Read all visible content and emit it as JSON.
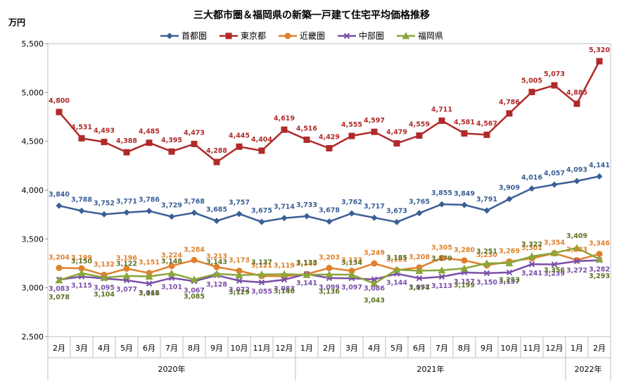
{
  "chart_data": {
    "type": "line",
    "title": "三大都市圏＆福岡県の新築一戸建て住宅平均価格推移",
    "ylabel": "万円",
    "ylim": [
      2500,
      5500
    ],
    "yticks": [
      "2,500",
      "3,000",
      "3,500",
      "4,000",
      "4,500",
      "5,000",
      "5,500"
    ],
    "grid": false,
    "legend_position": "top",
    "categories": [
      "2月",
      "3月",
      "4月",
      "5月",
      "6月",
      "7月",
      "8月",
      "9月",
      "10月",
      "11月",
      "12月",
      "1月",
      "2月",
      "3月",
      "4月",
      "5月",
      "6月",
      "7月",
      "8月",
      "9月",
      "10月",
      "11月",
      "12月",
      "1月",
      "2月"
    ],
    "years": [
      {
        "label": "2020年",
        "start": 0,
        "end": 10
      },
      {
        "label": "2021年",
        "start": 11,
        "end": 22
      },
      {
        "label": "2022年",
        "start": 23,
        "end": 24
      }
    ],
    "series": [
      {
        "name": "首都圏",
        "color": "#3a5f95",
        "marker": "diamond",
        "values": [
          3840,
          3788,
          3752,
          3771,
          3786,
          3729,
          3768,
          3685,
          3757,
          3675,
          3714,
          3733,
          3678,
          3762,
          3717,
          3673,
          3765,
          3855,
          3849,
          3791,
          3909,
          4016,
          4057,
          4093,
          4141
        ],
        "labels": [
          "3,840",
          "3,788",
          "3,752",
          "3,771",
          "3,786",
          "3,729",
          "3,768",
          "3,685",
          "3,757",
          "3,675",
          "3,714",
          "3,733",
          "3,678",
          "3,762",
          "3,717",
          "3,673",
          "3,765",
          "3,855",
          "3,849",
          "3,791",
          "3,909",
          "4,016",
          "4,057",
          "4,093",
          "4,141"
        ]
      },
      {
        "name": "東京都",
        "color": "#b02a2a",
        "marker": "square",
        "values": [
          4800,
          4531,
          4493,
          4388,
          4485,
          4395,
          4473,
          4288,
          4445,
          4404,
          4619,
          4516,
          4429,
          4555,
          4597,
          4479,
          4559,
          4711,
          4581,
          4567,
          4786,
          5005,
          5073,
          4885,
          5320
        ],
        "labels": [
          "4,800",
          "4,531",
          "4,493",
          "4,388",
          "4,485",
          "4,395",
          "4,473",
          "4,288",
          "4,445",
          "4,404",
          "4,619",
          "4,516",
          "4,429",
          "4,555",
          "4,597",
          "4,479",
          "4,559",
          "4,711",
          "4,581",
          "4,567",
          "4,786",
          "5,005",
          "5,073",
          "4,885",
          "5,320"
        ]
      },
      {
        "name": "近畿圏",
        "color": "#e0802e",
        "marker": "circle",
        "values": [
          3204,
          3199,
          3132,
          3196,
          3151,
          3224,
          3284,
          3213,
          3173,
          3121,
          3119,
          3140,
          3203,
          3173,
          3249,
          3181,
          3208,
          3305,
          3280,
          3230,
          3269,
          3301,
          3354,
          3283,
          3346
        ],
        "labels": [
          "3,204",
          "3,199",
          "3,132",
          "3,196",
          "3,151",
          "3,224",
          "3,284",
          "3,213",
          "3,173",
          "3,121",
          "3,119",
          "3,140",
          "3,203",
          "3,173",
          "3,249",
          "3,181",
          "3,208",
          "3,305",
          "3,280",
          "3,230",
          "3,269",
          "3,301",
          "3,354",
          "3,283",
          "3,346"
        ]
      },
      {
        "name": "中部圏",
        "color": "#7b4fa8",
        "marker": "x",
        "values": [
          3083,
          3115,
          3095,
          3077,
          3042,
          3101,
          3067,
          3128,
          3072,
          3055,
          3083,
          3141,
          3099,
          3097,
          3086,
          3144,
          3097,
          3113,
          3157,
          3150,
          3157,
          3241,
          3239,
          3272,
          3282
        ],
        "labels": [
          "3,083",
          "3,115",
          "3,095",
          "3,077",
          "3,042",
          "3,101",
          "3,067",
          "3,128",
          "3,072",
          "3,055",
          "3,083",
          "3,141",
          "3,099",
          "3,097",
          "3,086",
          "3,144",
          "3,097",
          "3,113",
          "3,157",
          "3,150",
          "3,157",
          "3,241",
          "3,239",
          "3,272",
          "3,282"
        ]
      },
      {
        "name": "福岡県",
        "color": "#8aa63a",
        "marker": "triangle",
        "values": [
          3078,
          3150,
          3104,
          3122,
          3116,
          3148,
          3085,
          3143,
          3129,
          3137,
          3140,
          3133,
          3136,
          3134,
          3043,
          3185,
          3174,
          3179,
          3199,
          3251,
          3253,
          3322,
          3356,
          3409,
          3293
        ],
        "labels": [
          "3,078",
          "3,150",
          "3,104",
          "3,122",
          "3,116",
          "3,148",
          "3,085",
          "3,143",
          "3,129",
          "3,137",
          "3,140",
          "3,133",
          "3,136",
          "3,134",
          "3,043",
          "3,185",
          "3,174",
          "3,179",
          "3,199",
          "3,251",
          "3,253",
          "3,322",
          "3,356",
          "3,409",
          "3,293"
        ]
      }
    ]
  }
}
